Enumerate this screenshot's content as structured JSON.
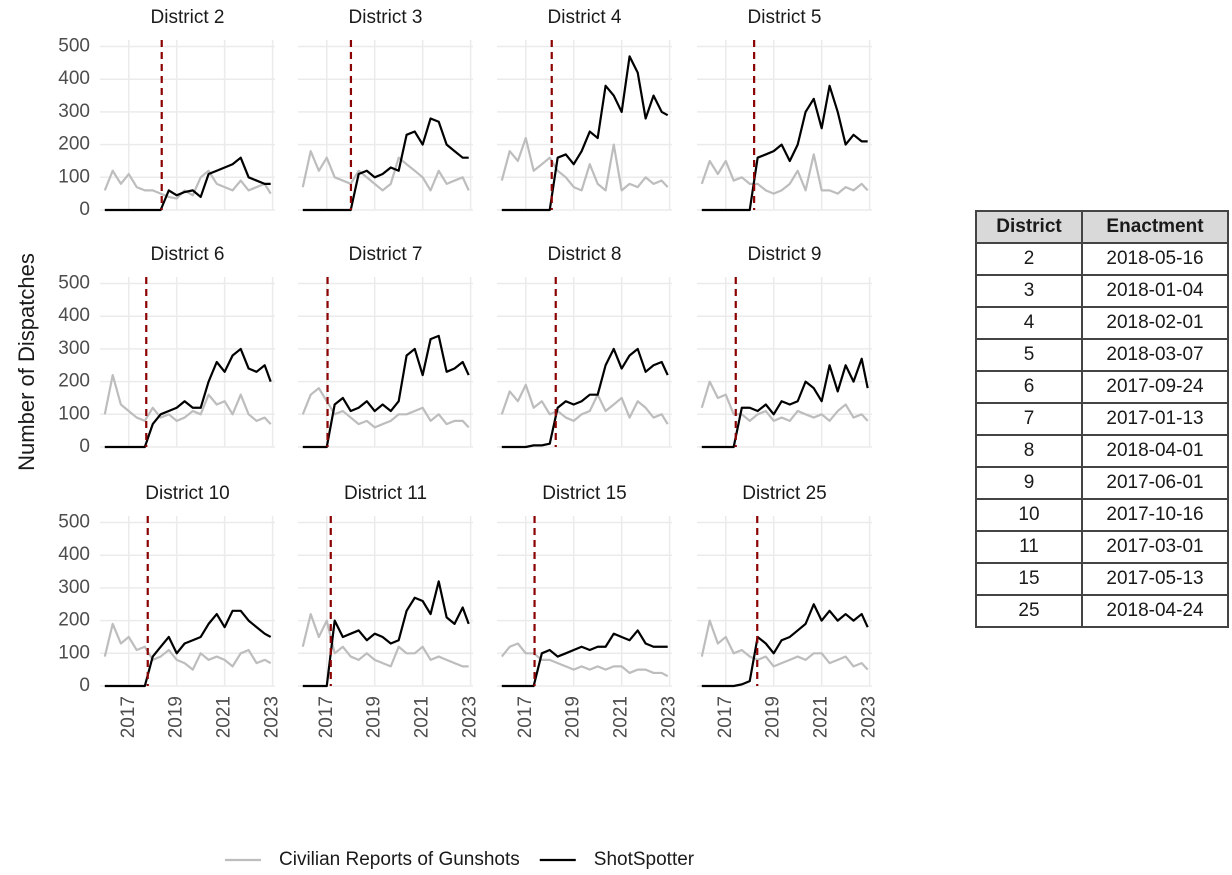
{
  "chart_data": {
    "type": "line",
    "y_label": "Number of Dispatches",
    "x": [
      2016.0,
      2016.33,
      2016.67,
      2017.0,
      2017.33,
      2017.67,
      2018.0,
      2018.33,
      2018.67,
      2019.0,
      2019.33,
      2019.67,
      2020.0,
      2020.33,
      2020.67,
      2021.0,
      2021.33,
      2021.67,
      2022.0,
      2022.33,
      2022.67,
      2022.92
    ],
    "xlim": [
      2015.8,
      2023.1
    ],
    "xticks": [
      2017,
      2019,
      2021,
      2023
    ],
    "ylim": [
      0,
      520
    ],
    "yticks": [
      0,
      100,
      200,
      300,
      400,
      500
    ],
    "grid": true,
    "legend": "bottom",
    "vline_color": "#8b0000",
    "series": [
      {
        "name": "Civilian Reports of Gunshots",
        "color": "#bdbdbd"
      },
      {
        "name": "ShotSpotter",
        "color": "#000000"
      }
    ],
    "panels": [
      {
        "title": "District 2",
        "values": [
          [
            60,
            120,
            80,
            110,
            70,
            60,
            60,
            50,
            40,
            35,
            60,
            45,
            100,
            120,
            80,
            70,
            60,
            90,
            60,
            70,
            80,
            50
          ],
          [
            0,
            0,
            0,
            0,
            0,
            0,
            0,
            0,
            60,
            45,
            55,
            60,
            40,
            110,
            120,
            130,
            140,
            160,
            100,
            90,
            80,
            80
          ]
        ]
      },
      {
        "title": "District 3",
        "values": [
          [
            70,
            180,
            120,
            160,
            100,
            90,
            80,
            120,
            100,
            80,
            60,
            80,
            160,
            140,
            120,
            100,
            60,
            120,
            80,
            90,
            100,
            60
          ],
          [
            0,
            0,
            0,
            0,
            0,
            0,
            0,
            110,
            120,
            100,
            110,
            130,
            120,
            230,
            240,
            200,
            280,
            270,
            200,
            180,
            160,
            160
          ]
        ]
      },
      {
        "title": "District 4",
        "values": [
          [
            90,
            180,
            150,
            220,
            120,
            140,
            160,
            120,
            100,
            70,
            60,
            140,
            80,
            60,
            200,
            60,
            80,
            70,
            100,
            80,
            90,
            70
          ],
          [
            0,
            0,
            0,
            0,
            0,
            0,
            0,
            160,
            170,
            140,
            180,
            240,
            220,
            380,
            350,
            300,
            470,
            420,
            280,
            350,
            300,
            290
          ]
        ]
      },
      {
        "title": "District 5",
        "values": [
          [
            80,
            150,
            110,
            150,
            90,
            100,
            80,
            80,
            60,
            50,
            60,
            80,
            120,
            60,
            170,
            60,
            60,
            50,
            70,
            60,
            80,
            60
          ],
          [
            0,
            0,
            0,
            0,
            0,
            0,
            0,
            160,
            170,
            180,
            200,
            150,
            200,
            300,
            340,
            250,
            380,
            300,
            200,
            230,
            210,
            210
          ]
        ]
      },
      {
        "title": "District 6",
        "values": [
          [
            100,
            220,
            130,
            110,
            90,
            80,
            120,
            90,
            100,
            80,
            90,
            110,
            100,
            160,
            130,
            140,
            100,
            160,
            100,
            80,
            90,
            70
          ],
          [
            0,
            0,
            0,
            0,
            0,
            0,
            70,
            100,
            110,
            120,
            140,
            120,
            120,
            200,
            260,
            230,
            280,
            300,
            240,
            230,
            250,
            200
          ]
        ]
      },
      {
        "title": "District 7",
        "values": [
          [
            100,
            160,
            180,
            140,
            100,
            110,
            90,
            70,
            80,
            60,
            70,
            80,
            100,
            100,
            110,
            120,
            80,
            100,
            70,
            80,
            80,
            60
          ],
          [
            0,
            0,
            0,
            0,
            130,
            150,
            110,
            120,
            140,
            110,
            130,
            110,
            140,
            280,
            300,
            220,
            330,
            340,
            230,
            240,
            260,
            220
          ]
        ]
      },
      {
        "title": "District 8",
        "values": [
          [
            100,
            170,
            140,
            190,
            120,
            140,
            100,
            110,
            90,
            80,
            100,
            110,
            160,
            110,
            130,
            150,
            90,
            140,
            120,
            90,
            100,
            70
          ],
          [
            0,
            0,
            0,
            0,
            5,
            5,
            10,
            120,
            140,
            130,
            140,
            160,
            160,
            250,
            300,
            240,
            280,
            300,
            230,
            250,
            260,
            220
          ]
        ]
      },
      {
        "title": "District 9",
        "values": [
          [
            120,
            200,
            150,
            160,
            100,
            100,
            80,
            100,
            110,
            80,
            90,
            80,
            110,
            100,
            90,
            100,
            80,
            110,
            130,
            90,
            100,
            80
          ],
          [
            0,
            0,
            0,
            0,
            0,
            120,
            120,
            110,
            130,
            100,
            140,
            130,
            140,
            200,
            180,
            140,
            250,
            170,
            250,
            200,
            270,
            180
          ]
        ]
      },
      {
        "title": "District 10",
        "values": [
          [
            90,
            190,
            130,
            150,
            110,
            120,
            80,
            90,
            110,
            80,
            70,
            50,
            100,
            80,
            90,
            80,
            60,
            100,
            110,
            70,
            80,
            70
          ],
          [
            0,
            0,
            0,
            0,
            0,
            0,
            90,
            120,
            150,
            100,
            130,
            140,
            150,
            190,
            220,
            180,
            230,
            230,
            200,
            180,
            160,
            150
          ]
        ]
      },
      {
        "title": "District 11",
        "values": [
          [
            120,
            220,
            150,
            200,
            100,
            120,
            90,
            80,
            100,
            80,
            70,
            60,
            120,
            100,
            100,
            120,
            80,
            90,
            80,
            70,
            60,
            60
          ],
          [
            0,
            0,
            0,
            0,
            200,
            150,
            160,
            170,
            140,
            160,
            150,
            130,
            140,
            230,
            270,
            260,
            220,
            320,
            210,
            190,
            240,
            190
          ]
        ]
      },
      {
        "title": "District 15",
        "values": [
          [
            90,
            120,
            130,
            100,
            100,
            80,
            80,
            70,
            60,
            50,
            60,
            50,
            60,
            50,
            60,
            60,
            40,
            50,
            50,
            40,
            40,
            30
          ],
          [
            0,
            0,
            0,
            0,
            0,
            100,
            110,
            90,
            100,
            110,
            120,
            110,
            120,
            120,
            160,
            150,
            140,
            170,
            130,
            120,
            120,
            120
          ]
        ]
      },
      {
        "title": "District 25",
        "values": [
          [
            90,
            200,
            130,
            150,
            100,
            110,
            90,
            80,
            90,
            60,
            70,
            80,
            90,
            80,
            100,
            100,
            70,
            80,
            90,
            60,
            70,
            50
          ],
          [
            0,
            0,
            0,
            0,
            0,
            5,
            15,
            150,
            130,
            100,
            140,
            150,
            170,
            190,
            250,
            200,
            230,
            200,
            220,
            200,
            220,
            180
          ]
        ]
      }
    ]
  },
  "table": {
    "header": [
      "District",
      "Enactment"
    ],
    "rows": [
      [
        "2",
        "2018-05-16"
      ],
      [
        "3",
        "2018-01-04"
      ],
      [
        "4",
        "2018-02-01"
      ],
      [
        "5",
        "2018-03-07"
      ],
      [
        "6",
        "2017-09-24"
      ],
      [
        "7",
        "2017-01-13"
      ],
      [
        "8",
        "2018-04-01"
      ],
      [
        "9",
        "2017-06-01"
      ],
      [
        "10",
        "2017-10-16"
      ],
      [
        "11",
        "2017-03-01"
      ],
      [
        "15",
        "2017-05-13"
      ],
      [
        "25",
        "2018-04-24"
      ]
    ]
  }
}
